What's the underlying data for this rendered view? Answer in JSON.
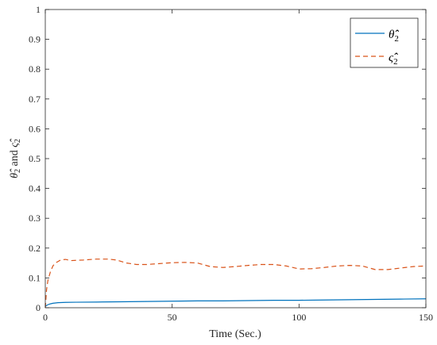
{
  "chart_data": {
    "type": "line",
    "title": "",
    "xlabel": "Time (Sec.)",
    "ylabel_parts": [
      "θ̂̂",
      "2",
      " and ",
      "ς̂̂",
      "2"
    ],
    "xlim": [
      0,
      150
    ],
    "ylim": [
      0,
      1
    ],
    "xticks": [
      0,
      50,
      100,
      150
    ],
    "yticks": [
      0,
      0.1,
      0.2,
      0.3,
      0.4,
      0.5,
      0.6,
      0.7,
      0.8,
      0.9,
      1
    ],
    "xtick_labels": [
      "0",
      "50",
      "100",
      "150"
    ],
    "ytick_labels": [
      "0",
      "0.1",
      "0.2",
      "0.3",
      "0.4",
      "0.5",
      "0.6",
      "0.7",
      "0.8",
      "0.9",
      "1"
    ],
    "grid": false,
    "legend_position": "top-right",
    "series": [
      {
        "name_base": "θ̂̂",
        "name_sub": "2",
        "color": "#0072BD",
        "dash": "solid",
        "x": [
          0,
          1,
          2,
          3,
          5,
          8,
          12,
          20,
          30,
          40,
          50,
          60,
          70,
          80,
          90,
          100,
          110,
          120,
          130,
          140,
          150
        ],
        "y": [
          0.005,
          0.01,
          0.013,
          0.015,
          0.017,
          0.018,
          0.0185,
          0.019,
          0.02,
          0.021,
          0.022,
          0.023,
          0.023,
          0.024,
          0.025,
          0.025,
          0.026,
          0.027,
          0.028,
          0.029,
          0.03
        ]
      },
      {
        "name_base": "ς̂̂",
        "name_sub": "2",
        "color": "#D95319",
        "dash": "dashed",
        "x": [
          0,
          0.5,
          1,
          2,
          3,
          4,
          5,
          6,
          8,
          10,
          15,
          20,
          25,
          28,
          32,
          36,
          40,
          45,
          50,
          55,
          60,
          65,
          70,
          75,
          80,
          85,
          90,
          95,
          100,
          105,
          110,
          115,
          120,
          125,
          130,
          135,
          140,
          145,
          150
        ],
        "y": [
          0.0,
          0.06,
          0.09,
          0.12,
          0.14,
          0.15,
          0.155,
          0.16,
          0.162,
          0.158,
          0.16,
          0.163,
          0.163,
          0.16,
          0.15,
          0.145,
          0.145,
          0.148,
          0.151,
          0.152,
          0.15,
          0.138,
          0.135,
          0.138,
          0.142,
          0.145,
          0.145,
          0.14,
          0.13,
          0.131,
          0.135,
          0.14,
          0.142,
          0.14,
          0.128,
          0.128,
          0.133,
          0.138,
          0.14
        ]
      }
    ]
  }
}
